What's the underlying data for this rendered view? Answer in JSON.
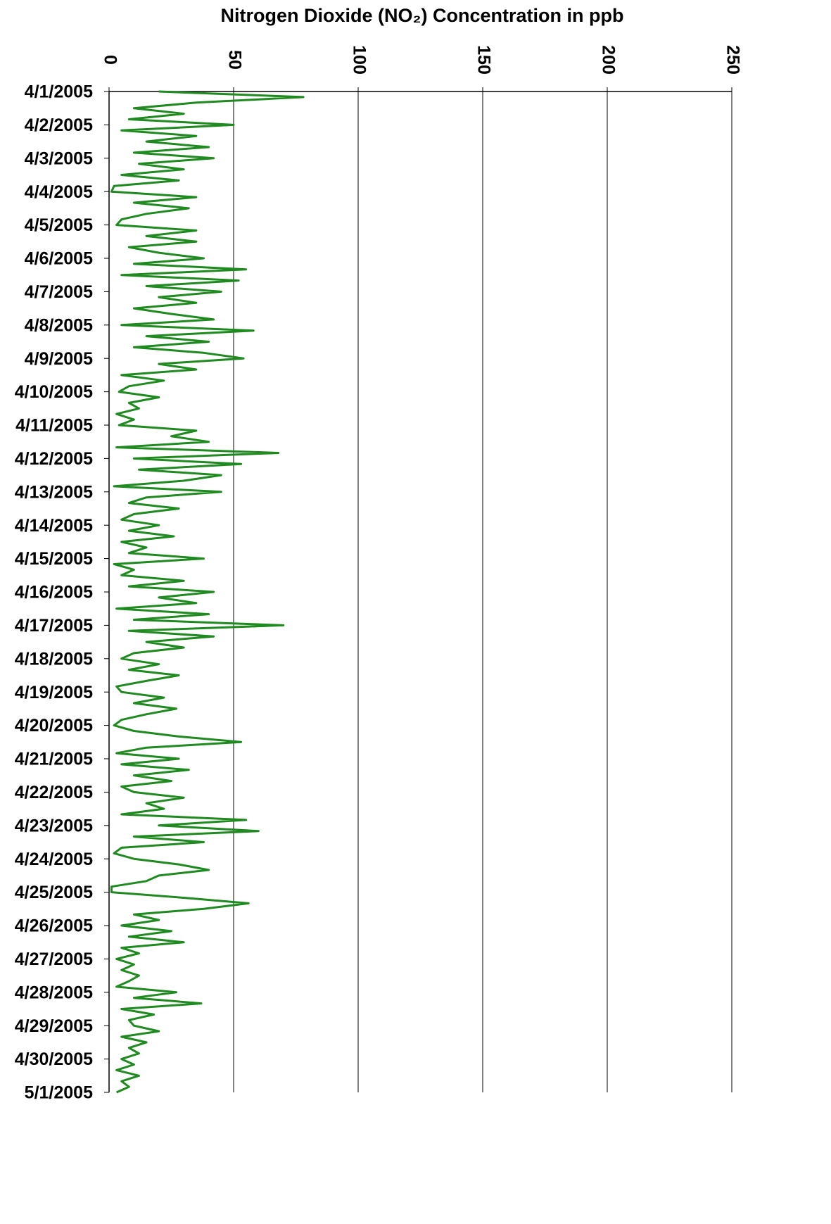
{
  "chart_data": {
    "type": "line",
    "title": "Nitrogen Dioxide (NO₂) Concentration in ppb",
    "categories": [
      "4/1/2005",
      null,
      null,
      null,
      null,
      null,
      "4/2/2005",
      null,
      null,
      null,
      null,
      null,
      "4/3/2005",
      null,
      null,
      null,
      null,
      null,
      "4/4/2005",
      null,
      null,
      null,
      null,
      null,
      "4/5/2005",
      null,
      null,
      null,
      null,
      null,
      "4/6/2005",
      null,
      null,
      null,
      null,
      null,
      "4/7/2005",
      null,
      null,
      null,
      null,
      null,
      "4/8/2005",
      null,
      null,
      null,
      null,
      null,
      "4/9/2005",
      null,
      null,
      null,
      null,
      null,
      "4/10/2005",
      null,
      null,
      null,
      null,
      null,
      "4/11/2005",
      null,
      null,
      null,
      null,
      null,
      "4/12/2005",
      null,
      null,
      null,
      null,
      null,
      "4/13/2005",
      null,
      null,
      null,
      null,
      null,
      "4/14/2005",
      null,
      null,
      null,
      null,
      null,
      "4/15/2005",
      null,
      null,
      null,
      null,
      null,
      "4/16/2005",
      null,
      null,
      null,
      null,
      null,
      "4/17/2005",
      null,
      null,
      null,
      null,
      null,
      "4/18/2005",
      null,
      null,
      null,
      null,
      null,
      "4/19/2005",
      null,
      null,
      null,
      null,
      null,
      "4/20/2005",
      null,
      null,
      null,
      null,
      null,
      "4/21/2005",
      null,
      null,
      null,
      null,
      null,
      "4/22/2005",
      null,
      null,
      null,
      null,
      null,
      "4/23/2005",
      null,
      null,
      null,
      null,
      null,
      "4/24/2005",
      null,
      null,
      null,
      null,
      null,
      "4/25/2005",
      null,
      null,
      null,
      null,
      null,
      "4/26/2005",
      null,
      null,
      null,
      null,
      null,
      "4/27/2005",
      null,
      null,
      null,
      null,
      null,
      "4/28/2005",
      null,
      null,
      null,
      null,
      null,
      "4/29/2005",
      null,
      null,
      null,
      null,
      null,
      "4/30/2005",
      null,
      null,
      null,
      null,
      null,
      "5/1/2005"
    ],
    "values": [
      20,
      78,
      35,
      10,
      30,
      8,
      50,
      5,
      35,
      15,
      40,
      10,
      42,
      12,
      30,
      5,
      28,
      2,
      1,
      35,
      10,
      32,
      15,
      5,
      3,
      35,
      15,
      35,
      8,
      20,
      38,
      10,
      55,
      5,
      52,
      15,
      45,
      20,
      35,
      10,
      25,
      42,
      5,
      58,
      15,
      40,
      10,
      38,
      54,
      20,
      35,
      5,
      22,
      8,
      4,
      20,
      8,
      12,
      3,
      10,
      4,
      35,
      25,
      40,
      3,
      68,
      10,
      53,
      12,
      45,
      30,
      2,
      45,
      15,
      8,
      28,
      10,
      5,
      20,
      8,
      26,
      5,
      15,
      8,
      38,
      2,
      10,
      5,
      30,
      8,
      42,
      20,
      35,
      3,
      40,
      10,
      70,
      8,
      42,
      15,
      30,
      10,
      5,
      20,
      8,
      28,
      15,
      3,
      5,
      22,
      10,
      27,
      15,
      5,
      2,
      10,
      28,
      53,
      15,
      3,
      28,
      5,
      32,
      10,
      25,
      5,
      10,
      30,
      15,
      22,
      5,
      55,
      20,
      60,
      10,
      38,
      5,
      2,
      10,
      28,
      40,
      20,
      15,
      1,
      1,
      30,
      56,
      38,
      10,
      20,
      5,
      25,
      8,
      30,
      5,
      12,
      3,
      10,
      5,
      12,
      8,
      3,
      27,
      10,
      37,
      5,
      18,
      8,
      10,
      20,
      5,
      15,
      8,
      12,
      5,
      10,
      3,
      12,
      5,
      8,
      3
    ],
    "color": "#1f8a1f",
    "ylim": [
      0,
      250
    ],
    "yticks": [
      0,
      50,
      100,
      150,
      200,
      250
    ],
    "grid": true
  }
}
